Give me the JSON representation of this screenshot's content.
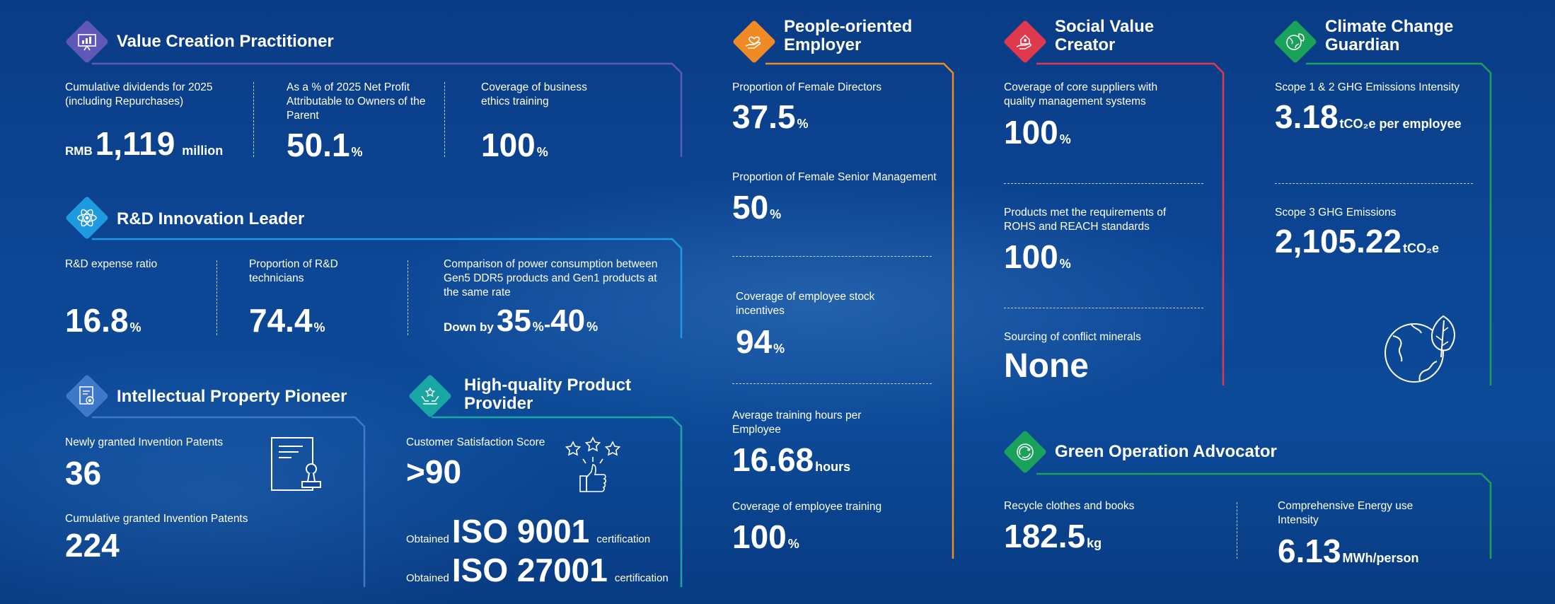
{
  "colors": {
    "purple": "#5f58b8",
    "blue": "#1e9be0",
    "ip_blue": "#3f78c8",
    "teal": "#1aa6a3",
    "orange": "#ef8a24",
    "red": "#e0384c",
    "green": "#1aa25a"
  },
  "value_creation": {
    "title": "Value Creation Practitioner",
    "m1": {
      "label": "Cumulative dividends for 2025 (including Repurchases)",
      "prefix": "RMB",
      "value": "1,119",
      "unit": "million"
    },
    "m2": {
      "label": "As a % of 2025 Net Profit Attributable to Owners of the Parent",
      "value": "50.1",
      "unit": "%"
    },
    "m3": {
      "label": "Coverage of business ethics training",
      "value": "100",
      "unit": "%"
    }
  },
  "rd": {
    "title": "R&D Innovation Leader",
    "m1": {
      "label": "R&D expense ratio",
      "value": "16.8",
      "unit": "%"
    },
    "m2": {
      "label": "Proportion of R&D technicians",
      "value": "74.4",
      "unit": "%"
    },
    "m3": {
      "label": "Comparison of power consumption between Gen5 DDR5 products and Gen1 products at the same rate",
      "prefix": "Down by",
      "v1": "35",
      "u1": "%",
      "dash": "-",
      "v2": "40",
      "u2": "%"
    }
  },
  "ip": {
    "title": "Intellectual Property Pioneer",
    "m1": {
      "label": "Newly granted Invention Patents",
      "value": "36"
    },
    "m2": {
      "label": "Cumulative granted Invention Patents",
      "value": "224"
    }
  },
  "quality": {
    "title": "High-quality Product Provider",
    "m1": {
      "label": "Customer Satisfaction Score",
      "value": ">90"
    },
    "iso1": {
      "prefix": "Obtained",
      "value": "ISO 9001",
      "suffix": "certification"
    },
    "iso2": {
      "prefix": "Obtained",
      "value": "ISO 27001",
      "suffix": "certification"
    }
  },
  "people": {
    "title": "People-oriented Employer",
    "m1": {
      "label": "Proportion of Female Directors",
      "value": "37.5",
      "unit": "%"
    },
    "m2": {
      "label": "Proportion of Female Senior Management",
      "value": "50",
      "unit": "%"
    },
    "m3": {
      "label": "Coverage of employee stock incentives",
      "value": "94",
      "unit": "%"
    },
    "m4": {
      "label": "Average training hours per Employee",
      "value": "16.68",
      "unit": "hours"
    },
    "m5": {
      "label": "Coverage of employee training",
      "value": "100",
      "unit": "%"
    }
  },
  "social": {
    "title": "Social Value Creator",
    "m1": {
      "label": "Coverage of core suppliers with quality management systems",
      "value": "100",
      "unit": "%"
    },
    "m2": {
      "label": "Products met the requirements of ROHS and REACH standards",
      "value": "100",
      "unit": "%"
    },
    "m3": {
      "label": "Sourcing of conflict minerals",
      "value": "None"
    }
  },
  "climate": {
    "title": "Climate Change Guardian",
    "m1": {
      "label": "Scope 1 & 2 GHG Emissions Intensity",
      "value": "3.18",
      "unit": "tCO₂e per employee"
    },
    "m2": {
      "label": "Scope 3 GHG Emissions",
      "value": "2,105.22",
      "unit": "tCO₂e"
    }
  },
  "green": {
    "title": "Green Operation Advocator",
    "m1": {
      "label": "Recycle clothes and books",
      "value": "182.5",
      "unit": "kg"
    },
    "m2": {
      "label": "Comprehensive Energy use Intensity",
      "value": "6.13",
      "unit": "MWh/person"
    }
  }
}
